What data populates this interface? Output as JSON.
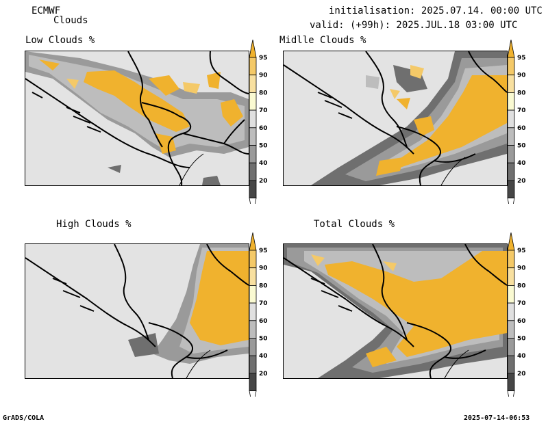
{
  "header": {
    "model": "ECMWF",
    "product": "Clouds",
    "init": "initialisation: 2025.07.14. 00:00 UTC",
    "valid": "valid: (+99h): 2025.JUL.18 03:00 UTC"
  },
  "panels": [
    {
      "title": "Low Clouds %"
    },
    {
      "title": "Midlle Clouds %"
    },
    {
      "title": "High Clouds %"
    },
    {
      "title": "Total Clouds %"
    }
  ],
  "colorbar": {
    "labels": [
      "95",
      "90",
      "80",
      "70",
      "60",
      "50",
      "40",
      "20"
    ],
    "colors": [
      "#f0b22e",
      "#f4c968",
      "#f8e0a0",
      "#fafad2",
      "#e0e0e0",
      "#bdbdbd",
      "#9a9a9a",
      "#6f6f6f",
      "#464646",
      "#ffffff"
    ]
  },
  "footer": {
    "left": "GrADS/COLA",
    "right": "2025-07-14-06:53"
  }
}
